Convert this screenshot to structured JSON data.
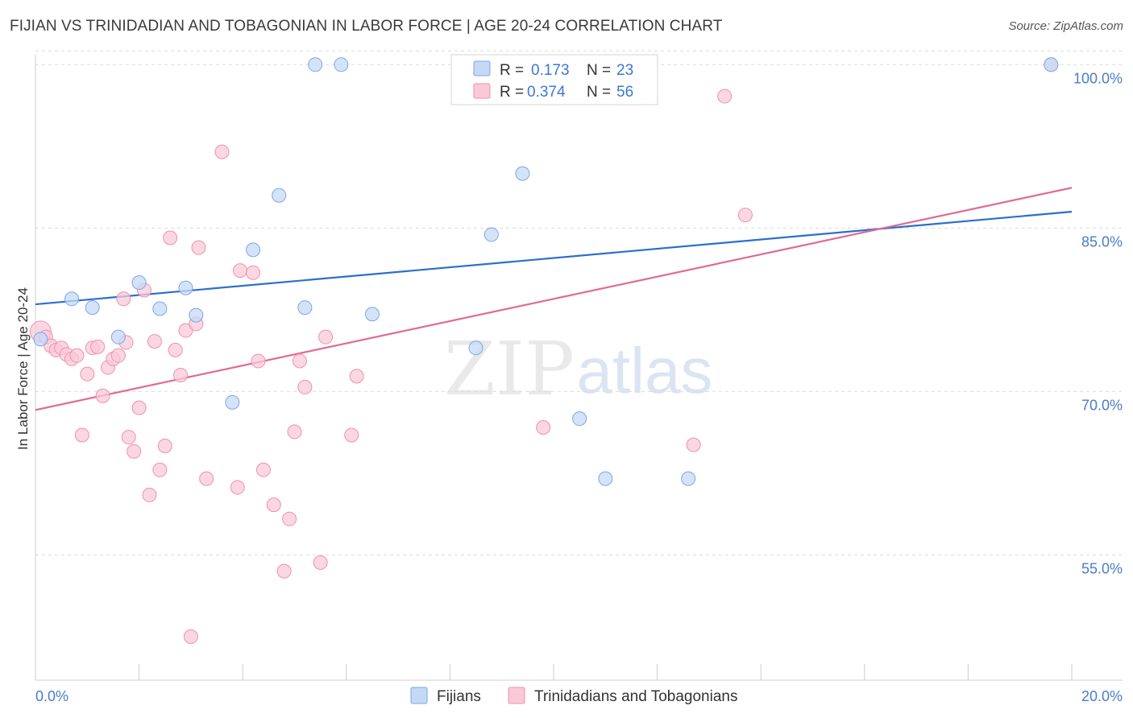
{
  "header": {
    "title": "FIJIAN VS TRINIDADIAN AND TOBAGONIAN IN LABOR FORCE | AGE 20-24 CORRELATION CHART",
    "source": "Source: ZipAtlas.com"
  },
  "chart_data": {
    "type": "scatter",
    "ylabel": "In Labor Force | Age 20-24",
    "xlim": [
      0,
      20
    ],
    "ylim": [
      43.5,
      101.5
    ],
    "x_tick_labels": [
      "0.0%",
      "20.0%"
    ],
    "y_ticks": [
      55,
      70,
      85,
      100
    ],
    "y_tick_labels": [
      "55.0%",
      "70.0%",
      "85.0%",
      "100.0%"
    ],
    "grid": true,
    "watermark": {
      "zip": "ZIP",
      "atlas": "atlas"
    },
    "legend_stats": [
      {
        "r_label": "R = ",
        "r_value": "0.173",
        "n_label": "N = ",
        "n_value": "23"
      },
      {
        "r_label": "R = ",
        "r_value": "0.374",
        "n_label": "N = ",
        "n_value": "56"
      }
    ],
    "series": [
      {
        "name": "Fijians",
        "color": "#7aa7e8",
        "fill": "#c5d9f5",
        "line_color": "#2a6fd0",
        "trend": [
          [
            0,
            78.0
          ],
          [
            20,
            86.5
          ]
        ],
        "points": [
          [
            0.1,
            74.8
          ],
          [
            0.7,
            78.5
          ],
          [
            1.1,
            77.7
          ],
          [
            1.6,
            75.0
          ],
          [
            2.0,
            80.0
          ],
          [
            2.4,
            77.6
          ],
          [
            2.9,
            79.5
          ],
          [
            3.1,
            77.0
          ],
          [
            3.8,
            69.0
          ],
          [
            4.2,
            83.0
          ],
          [
            4.7,
            88.0
          ],
          [
            5.2,
            77.7
          ],
          [
            5.4,
            100.0
          ],
          [
            5.9,
            100.0
          ],
          [
            6.5,
            77.1
          ],
          [
            8.5,
            74.0
          ],
          [
            8.8,
            84.4
          ],
          [
            9.4,
            90.0
          ],
          [
            9.9,
            100.0
          ],
          [
            10.5,
            67.5
          ],
          [
            11.0,
            62.0
          ],
          [
            12.6,
            62.0
          ],
          [
            19.6,
            100.0
          ]
        ]
      },
      {
        "name": "Trinidadians and Tobagonians",
        "color": "#f08fb0",
        "fill": "#f9c9d8",
        "line_color": "#e06a95",
        "trend": [
          [
            0,
            68.3
          ],
          [
            20,
            88.7
          ]
        ],
        "points": [
          [
            0.1,
            75.5
          ],
          [
            0.2,
            75.0
          ],
          [
            0.3,
            74.2
          ],
          [
            0.4,
            73.8
          ],
          [
            0.5,
            74.0
          ],
          [
            0.6,
            73.4
          ],
          [
            0.7,
            73.0
          ],
          [
            0.8,
            73.3
          ],
          [
            0.9,
            66.0
          ],
          [
            1.0,
            71.6
          ],
          [
            1.1,
            74.0
          ],
          [
            1.2,
            74.1
          ],
          [
            1.3,
            69.6
          ],
          [
            1.4,
            72.2
          ],
          [
            1.5,
            73.0
          ],
          [
            1.6,
            73.3
          ],
          [
            1.7,
            78.5
          ],
          [
            1.75,
            74.5
          ],
          [
            1.8,
            65.8
          ],
          [
            1.9,
            64.5
          ],
          [
            2.0,
            68.5
          ],
          [
            2.1,
            79.3
          ],
          [
            2.2,
            60.5
          ],
          [
            2.3,
            74.6
          ],
          [
            2.4,
            62.8
          ],
          [
            2.5,
            65.0
          ],
          [
            2.6,
            84.1
          ],
          [
            2.7,
            73.8
          ],
          [
            2.8,
            71.5
          ],
          [
            2.9,
            75.6
          ],
          [
            3.0,
            47.5
          ],
          [
            3.1,
            76.2
          ],
          [
            3.15,
            83.2
          ],
          [
            3.3,
            62.0
          ],
          [
            3.6,
            92.0
          ],
          [
            3.9,
            61.2
          ],
          [
            3.95,
            81.1
          ],
          [
            4.2,
            80.9
          ],
          [
            4.3,
            72.8
          ],
          [
            4.4,
            62.8
          ],
          [
            4.6,
            59.6
          ],
          [
            4.8,
            53.5
          ],
          [
            4.9,
            58.3
          ],
          [
            5.0,
            66.3
          ],
          [
            5.1,
            72.8
          ],
          [
            5.2,
            70.4
          ],
          [
            5.5,
            54.3
          ],
          [
            5.6,
            75.0
          ],
          [
            6.1,
            66.0
          ],
          [
            6.2,
            71.4
          ],
          [
            10.0,
            100.0
          ],
          [
            9.8,
            66.7
          ],
          [
            12.7,
            65.1
          ],
          [
            13.3,
            97.1
          ],
          [
            13.7,
            86.2
          ],
          [
            19.6,
            100.0
          ]
        ]
      }
    ]
  }
}
